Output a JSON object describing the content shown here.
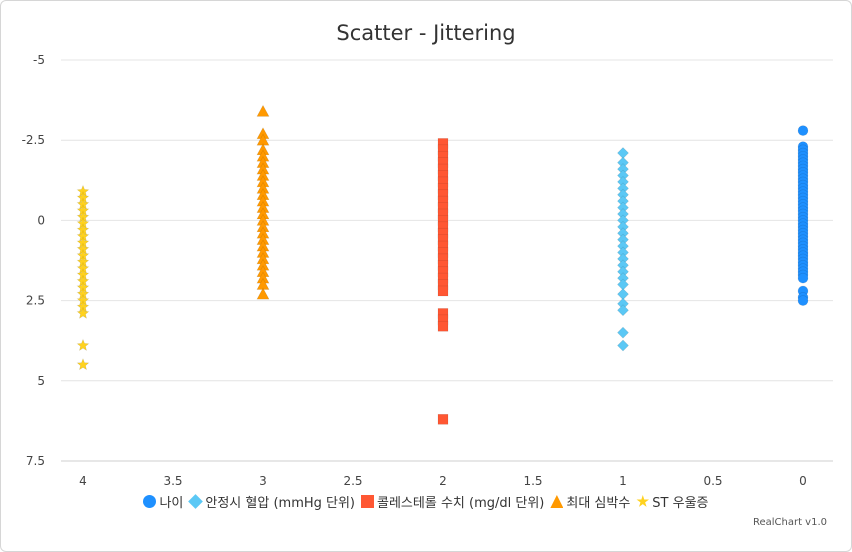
{
  "chart_data": {
    "type": "scatter",
    "title": "Scatter - Jittering",
    "credit": "RealChart v1.0",
    "xlim": [
      4,
      0
    ],
    "x_reversed": true,
    "x_ticks": [
      "4",
      "3.5",
      "3",
      "2.5",
      "2",
      "1.5",
      "1",
      "0.5",
      "0"
    ],
    "x_tick_values": [
      4,
      3.5,
      3,
      2.5,
      2,
      1.5,
      1,
      0.5,
      0
    ],
    "ylim": [
      -5,
      7.5
    ],
    "y_ticks": [
      "-5",
      "-2.5",
      "0",
      "2.5",
      "5",
      "7.5"
    ],
    "y_tick_values": [
      -5,
      -2.5,
      0,
      2.5,
      5,
      7.5
    ],
    "grid": true,
    "legend_position": "bottom",
    "series": [
      {
        "name": "나이",
        "x": 0,
        "marker": "circle",
        "color": "#1e90ff",
        "values": [
          -2.8,
          -2.3,
          -2.2,
          -2.1,
          -2.0,
          -1.9,
          -1.8,
          -1.7,
          -1.6,
          -1.5,
          -1.4,
          -1.3,
          -1.2,
          -1.1,
          -1.0,
          -0.9,
          -0.8,
          -0.7,
          -0.6,
          -0.5,
          -0.4,
          -0.3,
          -0.2,
          -0.1,
          0.0,
          0.1,
          0.2,
          0.3,
          0.4,
          0.5,
          0.6,
          0.7,
          0.8,
          0.9,
          1.0,
          1.1,
          1.2,
          1.3,
          1.4,
          1.5,
          1.6,
          1.7,
          1.8,
          2.2,
          2.4,
          2.5
        ]
      },
      {
        "name": "안정시 혈압 (mmHg 단위)",
        "x": 1,
        "marker": "diamond",
        "color": "#5bc8f5",
        "values": [
          -2.1,
          -1.8,
          -1.6,
          -1.4,
          -1.2,
          -1.0,
          -0.8,
          -0.6,
          -0.4,
          -0.2,
          0.0,
          0.2,
          0.4,
          0.6,
          0.8,
          1.0,
          1.2,
          1.4,
          1.6,
          1.8,
          2.0,
          2.3,
          2.6,
          2.8,
          3.5,
          3.9
        ]
      },
      {
        "name": "콜레스테롤 수치 (mg/dl 단위)",
        "x": 2,
        "marker": "square",
        "color": "#ff5733",
        "values": [
          -2.4,
          -2.2,
          -2.0,
          -1.8,
          -1.6,
          -1.4,
          -1.2,
          -1.0,
          -0.8,
          -0.6,
          -0.4,
          -0.2,
          0.0,
          0.2,
          0.4,
          0.6,
          0.8,
          1.0,
          1.2,
          1.4,
          1.6,
          1.8,
          2.0,
          2.2,
          2.9,
          3.1,
          3.3,
          6.2
        ]
      },
      {
        "name": "최대 심박수",
        "x": 3,
        "marker": "triangle",
        "color": "#ff9900",
        "values": [
          -3.4,
          -2.7,
          -2.5,
          -2.2,
          -2.0,
          -1.8,
          -1.6,
          -1.4,
          -1.2,
          -1.0,
          -0.8,
          -0.6,
          -0.4,
          -0.2,
          0.0,
          0.2,
          0.4,
          0.6,
          0.8,
          1.0,
          1.2,
          1.4,
          1.6,
          1.8,
          2.0,
          2.3
        ]
      },
      {
        "name": "ST 우울증",
        "x": 4,
        "marker": "star",
        "color": "#ffd21f",
        "values": [
          -0.9,
          -0.7,
          -0.5,
          -0.3,
          -0.1,
          0.1,
          0.3,
          0.5,
          0.7,
          0.9,
          1.1,
          1.3,
          1.5,
          1.7,
          1.9,
          2.1,
          2.3,
          2.5,
          2.7,
          2.9,
          3.9,
          4.5
        ]
      }
    ]
  }
}
